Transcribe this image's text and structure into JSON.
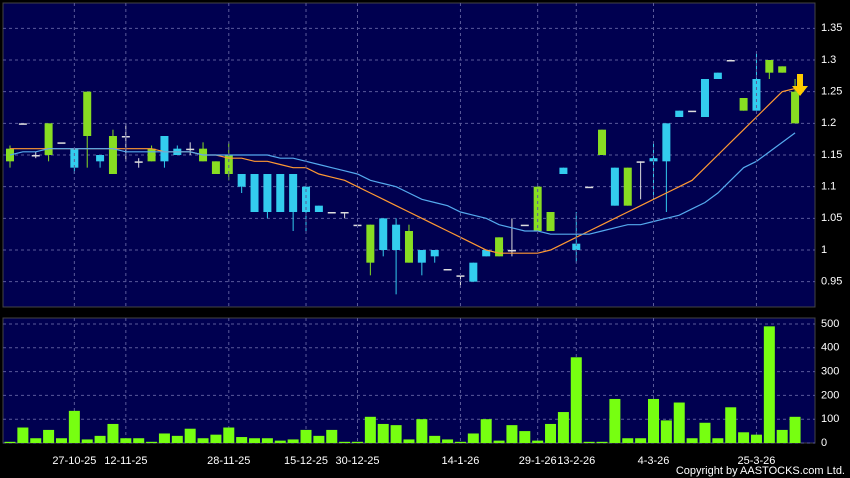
{
  "chart_data": [
    {
      "type": "candlestick",
      "open": [
        1.14,
        1.2,
        1.15,
        1.15,
        1.17,
        1.16,
        1.18,
        1.15,
        1.12,
        1.18,
        1.14,
        1.14,
        1.18,
        1.16,
        1.16,
        1.14,
        1.12,
        1.12,
        1.12,
        1.12,
        1.12,
        1.12,
        1.12,
        1.1,
        1.07,
        1.06,
        1.06,
        1.04,
        0.98,
        1.05,
        1.04,
        0.98,
        1.0,
        1.0,
        0.97,
        0.96,
        0.98,
        1.0,
        0.99,
        1.0,
        1.04,
        1.03,
        1.03,
        1.13,
        1.01,
        1.1,
        1.15,
        1.13,
        1.07,
        1.14,
        1.145,
        1.2,
        1.22,
        1.22,
        1.27,
        1.28,
        1.3,
        1.22,
        1.27,
        1.28,
        1.28,
        1.2
      ],
      "high": [
        1.165,
        1.2,
        1.155,
        1.2,
        1.17,
        1.16,
        1.25,
        1.15,
        1.19,
        1.2,
        1.145,
        1.165,
        1.18,
        1.165,
        1.17,
        1.17,
        1.14,
        1.17,
        1.12,
        1.12,
        1.12,
        1.12,
        1.12,
        1.1,
        1.07,
        1.06,
        1.06,
        1.04,
        1.04,
        1.05,
        1.05,
        1.04,
        1.0,
        1.0,
        0.97,
        0.96,
        0.98,
        1.0,
        1.02,
        1.05,
        1.04,
        1.1,
        1.06,
        1.13,
        1.06,
        1.1,
        1.19,
        1.13,
        1.13,
        1.14,
        1.17,
        1.2,
        1.22,
        1.22,
        1.27,
        1.28,
        1.3,
        1.24,
        1.31,
        1.3,
        1.29,
        1.27
      ],
      "low": [
        1.13,
        1.2,
        1.145,
        1.14,
        1.17,
        1.12,
        1.13,
        1.13,
        1.12,
        1.14,
        1.13,
        1.14,
        1.13,
        1.15,
        1.15,
        1.14,
        1.12,
        1.11,
        1.09,
        1.06,
        1.05,
        1.06,
        1.03,
        1.03,
        1.06,
        1.06,
        1.05,
        1.04,
        0.96,
        0.99,
        0.93,
        0.98,
        0.96,
        0.98,
        0.97,
        0.94,
        0.95,
        0.99,
        0.99,
        0.99,
        1.04,
        1.03,
        1.03,
        1.12,
        0.98,
        1.1,
        1.15,
        1.07,
        1.07,
        1.08,
        1.08,
        1.06,
        1.21,
        1.22,
        1.21,
        1.27,
        1.3,
        1.22,
        1.22,
        1.27,
        1.28,
        1.2
      ],
      "close": [
        1.16,
        1.2,
        1.15,
        1.2,
        1.17,
        1.13,
        1.25,
        1.14,
        1.18,
        1.18,
        1.14,
        1.16,
        1.14,
        1.15,
        1.16,
        1.16,
        1.14,
        1.15,
        1.1,
        1.06,
        1.06,
        1.06,
        1.06,
        1.06,
        1.06,
        1.06,
        1.06,
        1.04,
        1.04,
        1.0,
        1.0,
        1.03,
        0.98,
        0.99,
        0.97,
        0.96,
        0.95,
        0.99,
        1.02,
        1.0,
        1.04,
        1.1,
        1.06,
        1.12,
        1.0,
        1.1,
        1.19,
        1.07,
        1.13,
        1.14,
        1.14,
        1.14,
        1.21,
        1.22,
        1.21,
        1.27,
        1.3,
        1.24,
        1.22,
        1.3,
        1.29,
        1.25
      ],
      "up_color": "#88dd22",
      "down_color": "#33ccee",
      "doji_color": "#dddddd",
      "series": [
        {
          "color": "#ff9933",
          "values": [
            1.16,
            1.16,
            1.16,
            1.16,
            1.16,
            1.16,
            1.16,
            1.16,
            1.16,
            1.16,
            1.16,
            1.16,
            1.155,
            1.155,
            1.155,
            1.15,
            1.15,
            1.145,
            1.145,
            1.14,
            1.14,
            1.135,
            1.13,
            1.13,
            1.12,
            1.115,
            1.11,
            1.1,
            1.09,
            1.08,
            1.07,
            1.06,
            1.05,
            1.04,
            1.03,
            1.02,
            1.01,
            1.0,
            0.995,
            0.995,
            0.995,
            0.995,
            1.0,
            1.01,
            1.02,
            1.03,
            1.04,
            1.05,
            1.06,
            1.07,
            1.08,
            1.09,
            1.1,
            1.11,
            1.13,
            1.15,
            1.17,
            1.19,
            1.21,
            1.23,
            1.25,
            1.255
          ]
        },
        {
          "color": "#55aaee",
          "values": [
            1.15,
            1.155,
            1.155,
            1.16,
            1.16,
            1.16,
            1.16,
            1.16,
            1.16,
            1.155,
            1.155,
            1.155,
            1.155,
            1.155,
            1.155,
            1.15,
            1.15,
            1.15,
            1.15,
            1.15,
            1.15,
            1.145,
            1.145,
            1.14,
            1.135,
            1.13,
            1.125,
            1.12,
            1.11,
            1.105,
            1.1,
            1.09,
            1.08,
            1.075,
            1.07,
            1.06,
            1.055,
            1.05,
            1.04,
            1.035,
            1.03,
            1.03,
            1.025,
            1.025,
            1.025,
            1.025,
            1.03,
            1.035,
            1.04,
            1.04,
            1.045,
            1.05,
            1.055,
            1.065,
            1.075,
            1.09,
            1.11,
            1.13,
            1.14,
            1.155,
            1.17,
            1.185
          ]
        }
      ],
      "ylim": [
        0.91,
        1.39
      ],
      "yticks": [
        0.95,
        1,
        1.05,
        1.1,
        1.15,
        1.2,
        1.25,
        1.3,
        1.35
      ],
      "grid": true
    },
    {
      "type": "bar",
      "categories": [
        null,
        null,
        null,
        null,
        null,
        "27-10-25",
        null,
        null,
        null,
        "12-11-25",
        null,
        null,
        null,
        null,
        null,
        null,
        null,
        "28-11-25",
        null,
        null,
        null,
        null,
        null,
        "15-12-25",
        null,
        null,
        null,
        "30-12-25",
        null,
        null,
        null,
        null,
        null,
        null,
        null,
        "14-1-26",
        null,
        null,
        null,
        null,
        null,
        "29-1-26",
        null,
        null,
        "13-2-26",
        null,
        null,
        null,
        null,
        null,
        "4-3-26",
        null,
        null,
        null,
        null,
        null,
        null,
        null,
        "25-3-26",
        null,
        null,
        null
      ],
      "values": [
        5,
        65,
        20,
        55,
        20,
        135,
        15,
        30,
        80,
        20,
        20,
        5,
        40,
        30,
        60,
        20,
        35,
        65,
        25,
        20,
        20,
        10,
        15,
        55,
        30,
        55,
        5,
        5,
        110,
        80,
        75,
        15,
        100,
        30,
        15,
        5,
        40,
        100,
        10,
        75,
        50,
        10,
        80,
        130,
        360,
        5,
        5,
        185,
        20,
        20,
        185,
        95,
        170,
        20,
        85,
        20,
        150,
        45,
        35,
        490,
        55,
        110
      ],
      "color": "#77ff11",
      "ylim": [
        0,
        525
      ],
      "yticks": [
        0,
        100,
        200,
        300,
        400,
        500
      ],
      "grid": true
    },
    {
      "type": "note",
      "text": "Copyright by AASTOCKS.com Ltd."
    }
  ]
}
